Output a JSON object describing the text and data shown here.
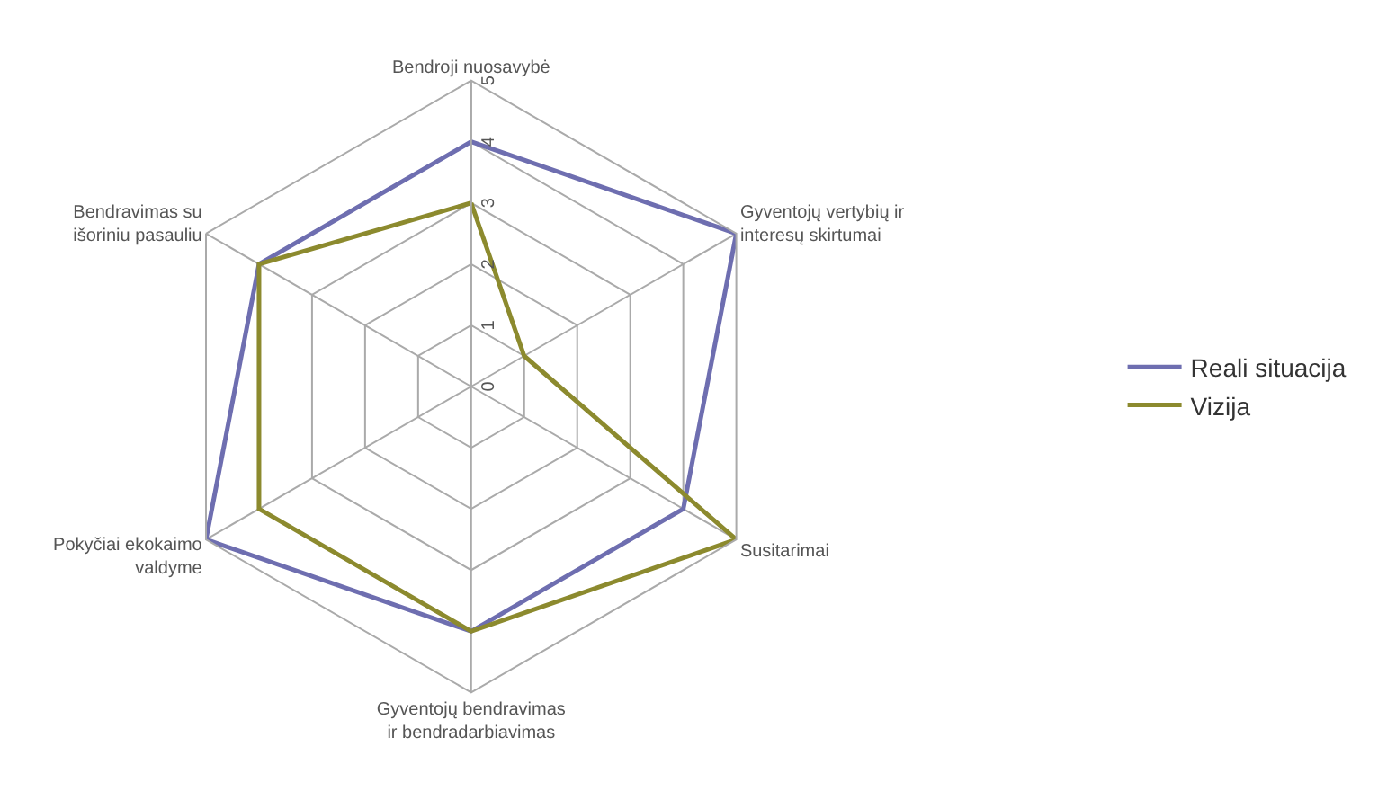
{
  "chart_data": {
    "type": "radar",
    "categories": [
      "Bendroji nuosavybė",
      "Gyventojų vertybių ir interesų skirtumai",
      "Susitarimai",
      "Gyventojų bendravimas ir bendradarbiavimas",
      "Pokyčiai ekokaimo valdyme",
      "Bendravimas su išoriniu pasauliu"
    ],
    "series": [
      {
        "name": "Reali situacija",
        "color": "#6e6eb0",
        "values": [
          4,
          5,
          4,
          4,
          5,
          4
        ]
      },
      {
        "name": "Vizija",
        "color": "#8c8a2e",
        "values": [
          3,
          1,
          5,
          4,
          4,
          4
        ]
      }
    ],
    "ylim": [
      0,
      5
    ],
    "yticks": [
      0,
      1,
      2,
      3,
      4,
      5
    ],
    "grid": true,
    "legend": "right",
    "marker": "none",
    "line_style": "solid"
  }
}
